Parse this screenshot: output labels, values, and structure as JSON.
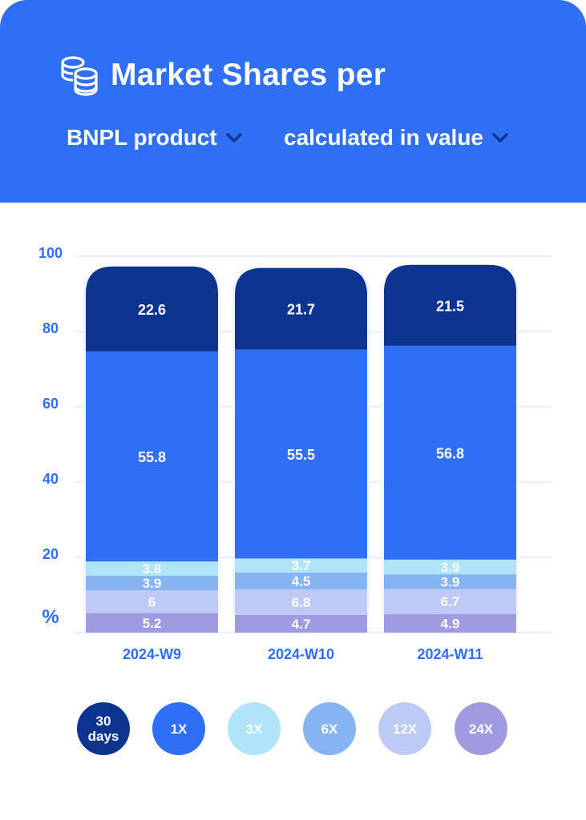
{
  "header": {
    "title": "Market Shares per",
    "icon": "coins-stack-icon",
    "dropdown_product": "BNPL product",
    "dropdown_metric": "calculated in value",
    "background": "#2f6ff5"
  },
  "chart_data": {
    "type": "bar",
    "stacked": true,
    "categories": [
      "2024-W9",
      "2024-W10",
      "2024-W11"
    ],
    "series": [
      {
        "name": "24X",
        "color": "#a09be0",
        "values": [
          5.2,
          4.7,
          4.9
        ]
      },
      {
        "name": "12X",
        "color": "#bccaf5",
        "values": [
          6,
          6.8,
          6.7
        ]
      },
      {
        "name": "6X",
        "color": "#86b4f3",
        "values": [
          3.9,
          4.5,
          3.9
        ]
      },
      {
        "name": "3X",
        "color": "#b0e4fb",
        "values": [
          3.8,
          3.7,
          3.9
        ]
      },
      {
        "name": "1X",
        "color": "#2f6ff5",
        "values": [
          55.8,
          55.5,
          56.8
        ]
      },
      {
        "name": "30 days",
        "color": "#0d3590",
        "values": [
          22.6,
          21.7,
          21.5
        ]
      }
    ],
    "ylim": [
      0,
      100
    ],
    "yticks": [
      20,
      40,
      60,
      80,
      100
    ],
    "ylabel": "%",
    "grid": true,
    "legend_position": "bottom"
  },
  "legend": [
    {
      "label": "30 days",
      "color": "#0d3590",
      "text_color": "#ffffff"
    },
    {
      "label": "1X",
      "color": "#2f6ff5",
      "text_color": "#ffffff"
    },
    {
      "label": "3X",
      "color": "#b0e4fb",
      "text_color": "#ffffff"
    },
    {
      "label": "6X",
      "color": "#86b4f3",
      "text_color": "#ffffff"
    },
    {
      "label": "12X",
      "color": "#bccaf5",
      "text_color": "#ffffff"
    },
    {
      "label": "24X",
      "color": "#a09be0",
      "text_color": "#ffffff"
    }
  ],
  "colors": {
    "axis_text": "#2f6ff5",
    "grid": "#eef0fb",
    "bar_bg": "#f3f4fc"
  }
}
